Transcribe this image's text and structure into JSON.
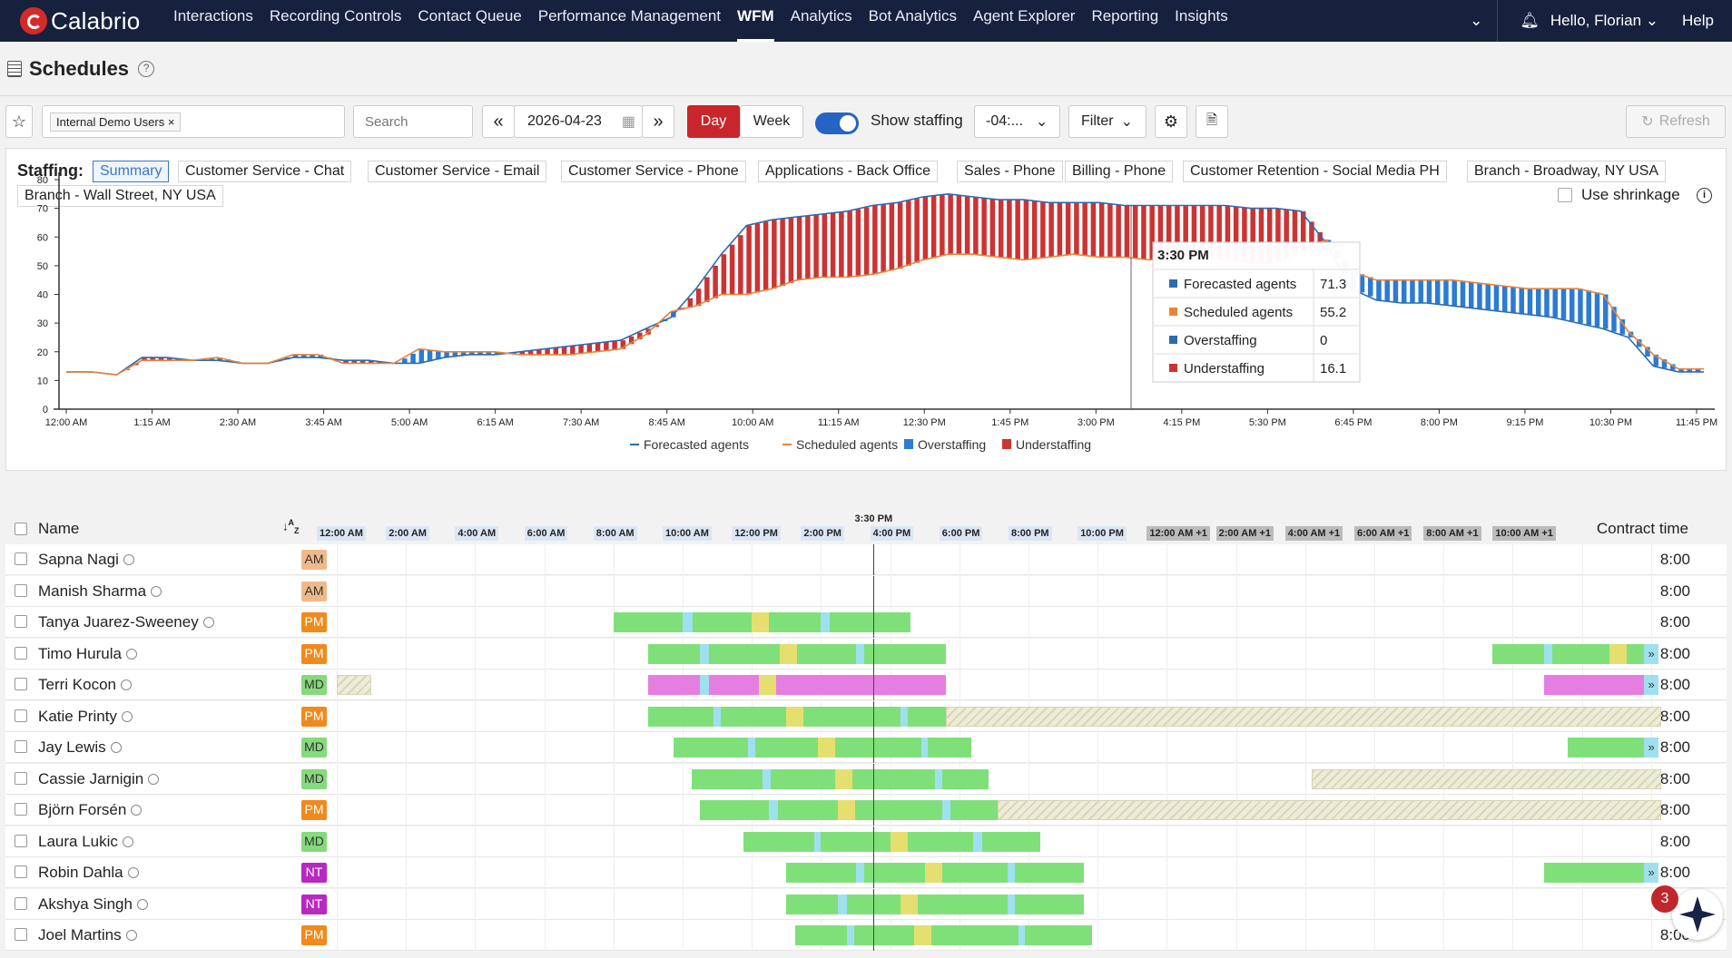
{
  "app": {
    "brand": "Calabrio",
    "greeting": "Hello, Florian",
    "help": "Help"
  },
  "nav": [
    "Interactions",
    "Recording Controls",
    "Contact Queue",
    "Performance Management",
    "WFM",
    "Analytics",
    "Bot Analytics",
    "Agent Explorer",
    "Reporting",
    "Insights"
  ],
  "nav_active": "WFM",
  "page": {
    "title": "Schedules"
  },
  "toolbar": {
    "filter_tag": "Internal Demo Users",
    "search_placeholder": "Search",
    "date": "2026-04-23",
    "day": "Day",
    "week": "Week",
    "show_staffing": "Show staffing",
    "show_staffing_on": true,
    "timezone": "-04:...",
    "filter": "Filter",
    "refresh": "Refresh"
  },
  "staffing": {
    "label": "Staffing:",
    "tabs": [
      "Summary",
      "Customer Service - Chat",
      "Customer Service - Email",
      "Customer Service - Phone",
      "Applications - Back Office",
      "Sales - Phone",
      "Billing - Phone",
      "Customer Retention - Social Media PH",
      "Branch - Broadway, NY USA",
      "Branch - Wall Street, NY USA"
    ],
    "active_tab": "Summary",
    "use_shrinkage": "Use shrinkage"
  },
  "chart_data": {
    "type": "line",
    "x_ticks": [
      "12:00 AM",
      "1:15 AM",
      "2:30 AM",
      "3:45 AM",
      "5:00 AM",
      "6:15 AM",
      "7:30 AM",
      "8:45 AM",
      "10:00 AM",
      "11:15 AM",
      "12:30 PM",
      "1:45 PM",
      "3:00 PM",
      "4:15 PM",
      "5:30 PM",
      "6:45 PM",
      "8:00 PM",
      "9:15 PM",
      "10:30 PM",
      "11:45 PM"
    ],
    "y_ticks": [
      0,
      10,
      20,
      30,
      40,
      50,
      60,
      70,
      80
    ],
    "ylim": [
      0,
      80
    ],
    "legend": [
      "Forecasted agents",
      "Scheduled agents",
      "Overstaffing",
      "Understaffing"
    ],
    "series": [
      {
        "name": "Forecasted agents",
        "color": "#2b6cb0",
        "values": [
          13,
          13,
          12,
          18,
          18,
          17,
          17,
          16,
          16,
          18,
          18,
          17,
          17,
          16,
          16,
          18,
          19,
          19,
          20,
          21,
          22,
          23,
          24,
          28,
          32,
          42,
          54,
          64,
          66,
          67,
          68,
          69,
          71,
          72,
          74,
          75,
          74,
          73,
          73,
          72,
          72,
          72,
          71,
          71,
          71,
          71,
          71,
          70,
          70,
          69,
          58,
          42,
          38,
          37,
          37,
          36,
          35,
          34,
          33,
          32,
          30,
          28,
          25,
          15,
          13,
          13
        ]
      },
      {
        "name": "Scheduled agents",
        "color": "#e8833a",
        "values": [
          13,
          13,
          12,
          17,
          17,
          17,
          18,
          16,
          16,
          19,
          19,
          16,
          16,
          16,
          21,
          20,
          20,
          20,
          19,
          19,
          19,
          20,
          21,
          26,
          34,
          36,
          40,
          40,
          42,
          45,
          46,
          46,
          47,
          49,
          52,
          54,
          54,
          53,
          52,
          53,
          54,
          53,
          53,
          52,
          53,
          53,
          52,
          51,
          51,
          55,
          59,
          48,
          45,
          45,
          45,
          45,
          44,
          43,
          42,
          42,
          42,
          40,
          27,
          19,
          14,
          14
        ]
      }
    ],
    "tooltip": {
      "time": "3:30 PM",
      "rows": [
        {
          "label": "Forecasted agents",
          "value": "71.3",
          "color": "#2b6cb0"
        },
        {
          "label": "Scheduled agents",
          "value": "55.2",
          "color": "#e8833a"
        },
        {
          "label": "Overstaffing",
          "value": "0",
          "color": "#2b6cb0"
        },
        {
          "label": "Understaffing",
          "value": "16.1",
          "color": "#cc3333"
        }
      ]
    }
  },
  "grid": {
    "name_header": "Name",
    "contract_header": "Contract time",
    "current_time": "3:30 PM",
    "hour_labels": [
      "12:00 AM",
      "2:00 AM",
      "4:00 AM",
      "6:00 AM",
      "8:00 AM",
      "10:00 AM",
      "12:00 PM",
      "2:00 PM",
      "4:00 PM",
      "6:00 PM",
      "8:00 PM",
      "10:00 PM",
      "12:00 AM +1",
      "2:00 AM +1",
      "4:00 AM +1",
      "6:00 AM +1",
      "8:00 AM +1",
      "10:00 AM +1"
    ],
    "badge_colors": {
      "AM": "#f0b98a",
      "PM": "#f08a1c",
      "MD": "#86d97c",
      "NT": "#b72ac0"
    },
    "activity_colors": {
      "work": "#7fe07a",
      "break": "#9fe0ef",
      "lunch": "#e4df6e",
      "training": "#e57ee0"
    },
    "employees": [
      {
        "name": "Sapna Nagi",
        "badge": "AM",
        "contract": "8:00",
        "shifts": [],
        "hatch": []
      },
      {
        "name": "Manish Sharma",
        "badge": "AM",
        "contract": "8:00",
        "shifts": [],
        "hatch": []
      },
      {
        "name": "Tanya Juarez-Sweeney",
        "badge": "PM",
        "contract": "8:00",
        "shifts": [
          [
            8.0,
            16.6,
            "work",
            [
              [
                10.0,
                10.3,
                "break"
              ],
              [
                12.0,
                12.5,
                "lunch"
              ],
              [
                14.0,
                14.25,
                "break"
              ]
            ]
          ]
        ],
        "hatch": []
      },
      {
        "name": "Timo Hurula",
        "badge": "PM",
        "contract": "8:00",
        "shifts": [
          [
            9.0,
            17.6,
            "work",
            [
              [
                10.5,
                10.75,
                "break"
              ],
              [
                12.8,
                13.3,
                "lunch"
              ],
              [
                15.0,
                15.25,
                "break"
              ]
            ]
          ],
          [
            33.4,
            37.8,
            "work",
            [
              [
                34.9,
                35.15,
                "break"
              ],
              [
                36.8,
                37.3,
                "lunch"
              ]
            ]
          ]
        ],
        "hatch": [],
        "arrow": true
      },
      {
        "name": "Terri Kocon",
        "badge": "MD",
        "contract": "8:00",
        "shifts": [
          [
            9.0,
            17.6,
            "training",
            [
              [
                10.5,
                10.75,
                "break"
              ],
              [
                12.2,
                12.7,
                "lunch"
              ]
            ]
          ],
          [
            34.9,
            37.8,
            "training",
            []
          ]
        ],
        "hatch": [
          [
            0.0,
            1.0
          ]
        ],
        "arrow": true
      },
      {
        "name": "Katie Printy",
        "badge": "PM",
        "contract": "8:00",
        "shifts": [
          [
            9.0,
            17.6,
            "work",
            [
              [
                10.9,
                11.1,
                "break"
              ],
              [
                13.0,
                13.5,
                "lunch"
              ],
              [
                16.3,
                16.5,
                "break"
              ]
            ]
          ]
        ],
        "hatch": [
          [
            17.6,
            38.3
          ]
        ]
      },
      {
        "name": "Jay Lewis",
        "badge": "MD",
        "contract": "8:00",
        "shifts": [
          [
            9.75,
            18.35,
            "work",
            [
              [
                11.9,
                12.1,
                "break"
              ],
              [
                13.9,
                14.4,
                "lunch"
              ],
              [
                16.9,
                17.1,
                "break"
              ]
            ]
          ],
          [
            35.6,
            37.8,
            "work",
            []
          ]
        ],
        "hatch": [],
        "arrow": true
      },
      {
        "name": "Cassie Jarnigin",
        "badge": "MD",
        "contract": "8:00",
        "shifts": [
          [
            10.25,
            18.85,
            "work",
            [
              [
                12.3,
                12.55,
                "break"
              ],
              [
                14.4,
                14.9,
                "lunch"
              ],
              [
                17.3,
                17.5,
                "break"
              ]
            ]
          ]
        ],
        "hatch": [
          [
            28.2,
            38.3
          ]
        ]
      },
      {
        "name": "Björn Forsén",
        "badge": "PM",
        "contract": "8:00",
        "shifts": [
          [
            10.5,
            19.1,
            "work",
            [
              [
                12.5,
                12.75,
                "break"
              ],
              [
                14.5,
                15.0,
                "lunch"
              ],
              [
                17.5,
                17.75,
                "break"
              ]
            ]
          ]
        ],
        "hatch": [
          [
            19.1,
            38.3
          ]
        ]
      },
      {
        "name": "Laura Lukic",
        "badge": "MD",
        "contract": "8:00",
        "shifts": [
          [
            11.75,
            20.35,
            "work",
            [
              [
                13.8,
                14.0,
                "break"
              ],
              [
                16.0,
                16.5,
                "lunch"
              ],
              [
                18.4,
                18.65,
                "break"
              ]
            ]
          ]
        ],
        "hatch": []
      },
      {
        "name": "Robin Dahla",
        "badge": "NT",
        "contract": "8:00",
        "shifts": [
          [
            13.0,
            21.6,
            "work",
            [
              [
                15.0,
                15.25,
                "break"
              ],
              [
                17.0,
                17.5,
                "lunch"
              ],
              [
                19.4,
                19.6,
                "break"
              ]
            ]
          ],
          [
            34.9,
            37.8,
            "work",
            []
          ]
        ],
        "hatch": [],
        "arrow": true
      },
      {
        "name": "Akshya Singh",
        "badge": "NT",
        "contract": "8:00",
        "shifts": [
          [
            13.0,
            21.6,
            "work",
            [
              [
                14.5,
                14.75,
                "break"
              ],
              [
                16.3,
                16.8,
                "lunch"
              ],
              [
                19.4,
                19.6,
                "break"
              ]
            ]
          ]
        ],
        "hatch": []
      },
      {
        "name": "Joel Martins",
        "badge": "PM",
        "contract": "8:00",
        "shifts": [
          [
            13.25,
            21.85,
            "work",
            [
              [
                14.75,
                14.95,
                "break"
              ],
              [
                16.7,
                17.2,
                "lunch"
              ],
              [
                19.7,
                19.9,
                "break"
              ]
            ]
          ]
        ],
        "hatch": []
      }
    ]
  },
  "notifications": {
    "count": "3"
  }
}
